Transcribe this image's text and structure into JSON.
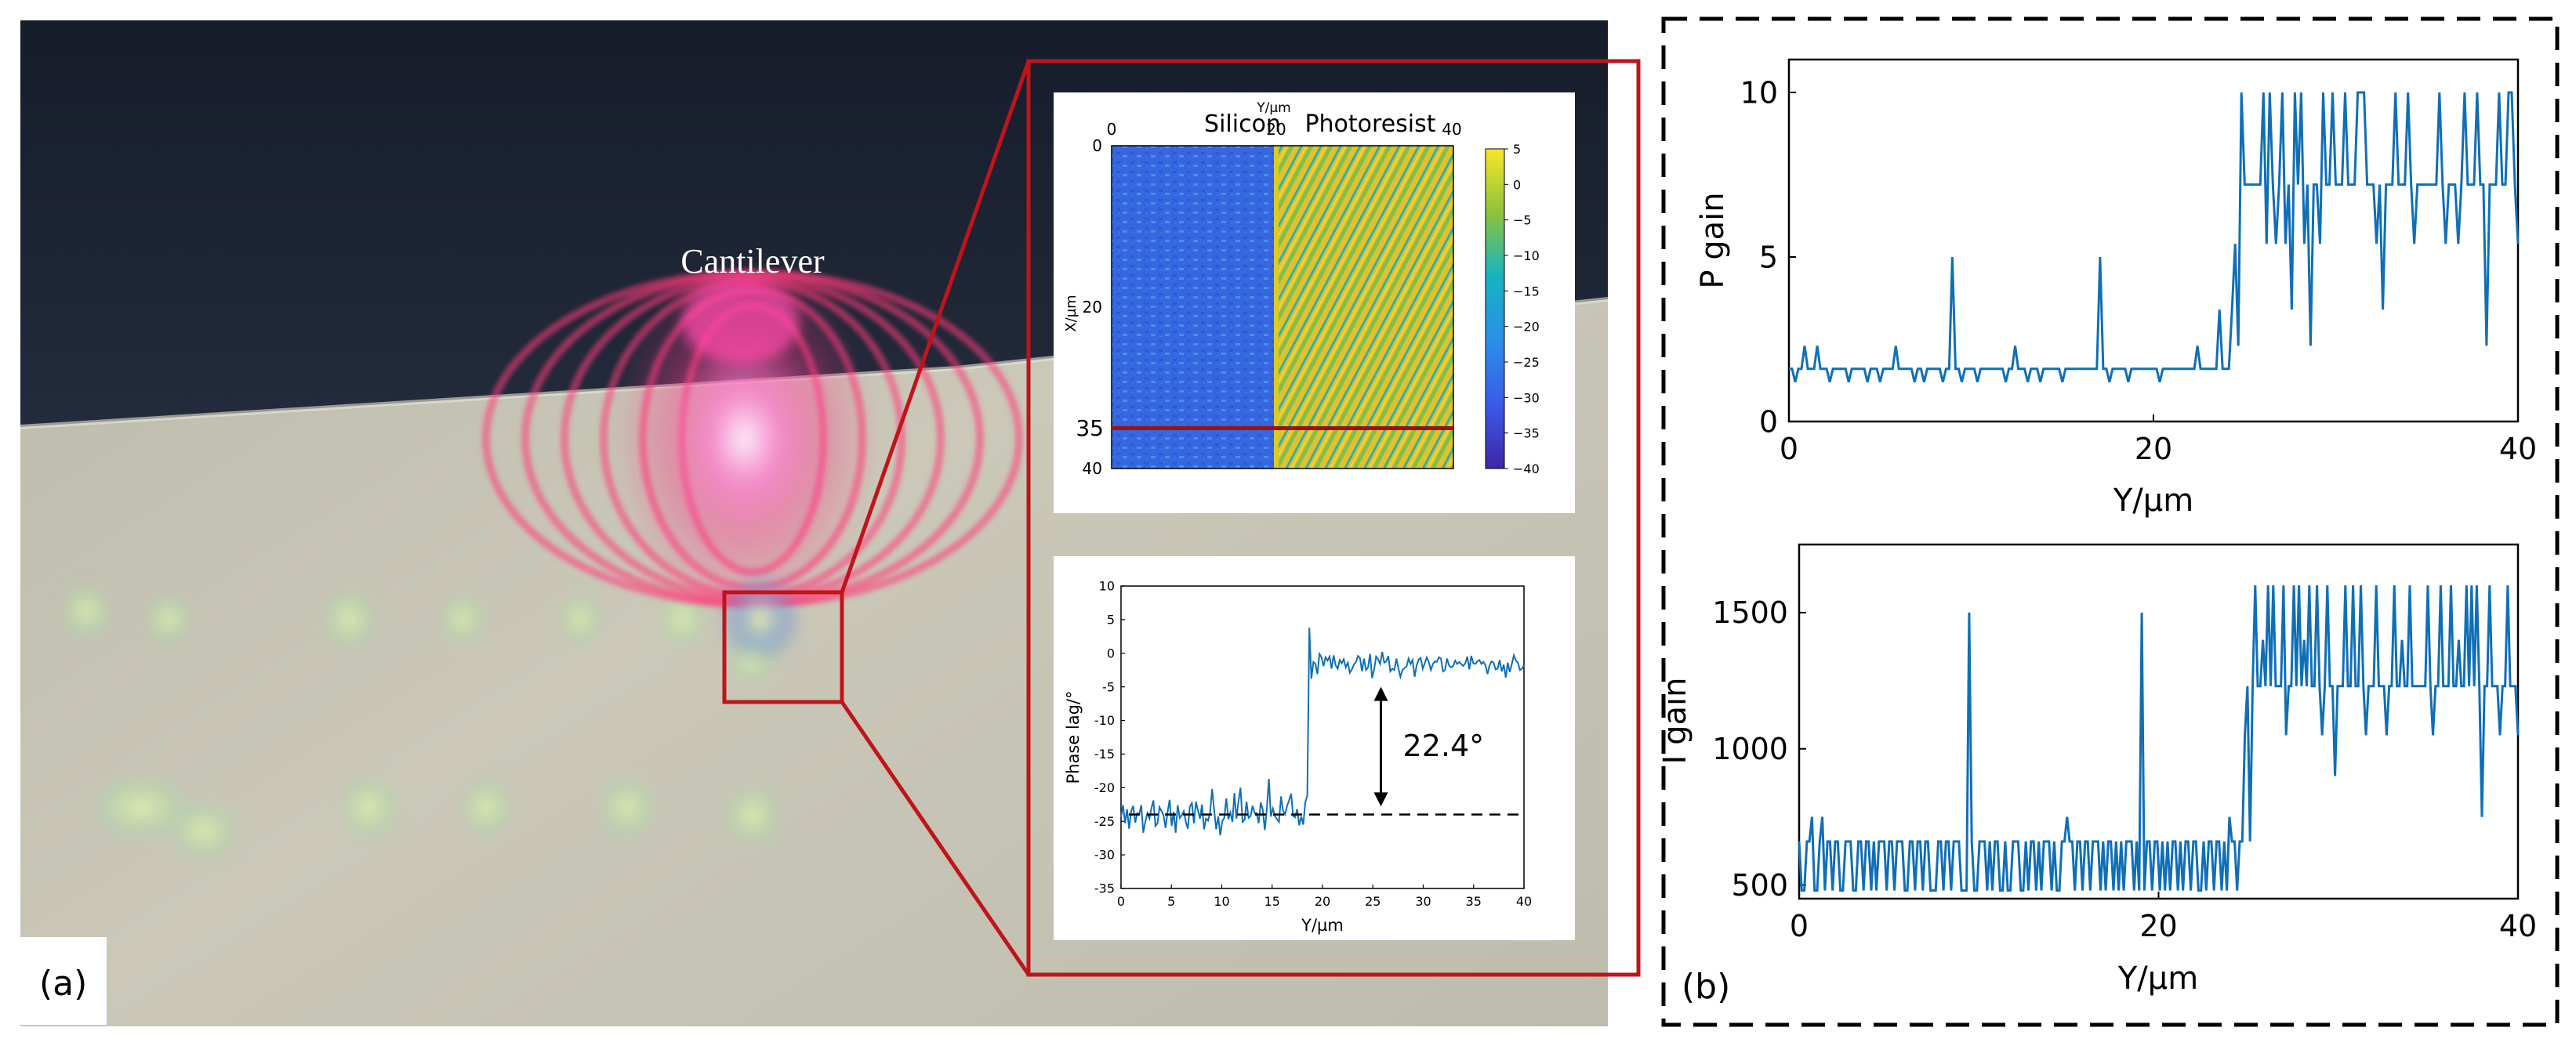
{
  "panel_a": {
    "label": "(a)",
    "cantilever_label": "Cantilever",
    "zoom_marker": "35",
    "colors": {
      "zoom_frame": "#c0141b",
      "sky": "#1b2231",
      "sample": "#c9c6b6",
      "laser": "#ff4a8a",
      "line": "#0f6fb6"
    },
    "chart_data": [
      {
        "type": "heatmap",
        "title": "",
        "top_axis_label": "Y/µm",
        "left_axis_label": "X/µm",
        "region_labels": [
          "Silicon",
          "Photoresist"
        ],
        "x_ticks": [
          "0",
          "20",
          "40"
        ],
        "y_ticks": [
          "0",
          "20",
          "35",
          "40"
        ],
        "boundary_y_um": 20,
        "cut_line_x_um": 35,
        "colorbar_ticks": [
          "5",
          "0",
          "−5",
          "−10",
          "−15",
          "−20",
          "−25",
          "−30",
          "−35",
          "−40"
        ],
        "colorbar_range": [
          -40,
          5
        ],
        "silicon_mean_value": -28,
        "photoresist_mean_value": 0
      },
      {
        "type": "line",
        "xlabel": "Y/µm",
        "ylabel": "Phase lag/°",
        "xlim": [
          0,
          40
        ],
        "ylim": [
          -35,
          10
        ],
        "x_ticks": [
          "0",
          "5",
          "10",
          "15",
          "20",
          "25",
          "30",
          "35",
          "40"
        ],
        "y_ticks": [
          "10",
          "5",
          "0",
          "-5",
          "-10",
          "-15",
          "-20",
          "-25",
          "-30",
          "-35"
        ],
        "silicon_level": -24,
        "photoresist_level": -1.6,
        "step_at_um": 18.5,
        "dashed_reference": -24,
        "annotation": "22.4°",
        "series": [
          {
            "name": "phase lag",
            "values": [
              -24.4,
              -22.6,
              -25.3,
              -23.2,
              -26.1,
              -23.5,
              -22.7,
              -25.2,
              -23.8,
              -24.0,
              -22.6,
              -26.7,
              -25.1,
              -23.8,
              -24.6,
              -23.1,
              -21.9,
              -25.7,
              -25.3,
              -22.9,
              -23.5,
              -24.1,
              -26.0,
              -23.6,
              -21.8,
              -25.7,
              -23.6,
              -26.7,
              -22.6,
              -24.5,
              -24.1,
              -23.5,
              -25.1,
              -26.1,
              -22.8,
              -22.3,
              -25.3,
              -22.1,
              -23.4,
              -24.6,
              -22.5,
              -26.2,
              -24.6,
              -24.9,
              -23.7,
              -20.2,
              -23.4,
              -26.2,
              -24.3,
              -27.1,
              -25.0,
              -24.5,
              -21.6,
              -24.7,
              -23.7,
              -25.1,
              -20.8,
              -24.6,
              -22.1,
              -20.0,
              -25.1,
              -24.8,
              -22.1,
              -24.5,
              -24.2,
              -22.7,
              -23.8,
              -23.8,
              -25.3,
              -22.2,
              -23.3,
              -26.3,
              -23.2,
              -18.7,
              -24.3,
              -23.1,
              -24.2,
              -24.7,
              -25.1,
              -21.3,
              -23.4,
              -24.0,
              -22.7,
              -21.9,
              -20.9,
              -24.2,
              -24.4,
              -23.2,
              -25.6,
              -24.3,
              -25.5,
              -22.2,
              -21.2,
              3.8,
              -3.8,
              -1.3,
              -1.6,
              -3.1,
              -0.1,
              -0.6,
              -1.9,
              -0.6,
              -1.1,
              -0.5,
              -2.3,
              -0.3,
              -1.8,
              -2.3,
              -1.0,
              -1.5,
              -0.9,
              -2.1,
              -1.4,
              -2.9,
              -2.4,
              -1.7,
              -1.3,
              -0.4,
              -0.7,
              -2.7,
              -0.8,
              -2.5,
              -2.1,
              -0.1,
              -3.7,
              -2.4,
              -0.5,
              -0.9,
              -1.6,
              0.2,
              -1.4,
              -1.2,
              -0.4,
              -2.7,
              -2.3,
              -2.5,
              -0.8,
              -2.3,
              -3.5,
              -2.5,
              -2.2,
              -2.0,
              -0.8,
              -1.6,
              -1.0,
              -3.5,
              -1.8,
              -0.9,
              -0.7,
              -2.3,
              -1.5,
              -0.6,
              -1.3,
              -2.5,
              -1.6,
              -1.2,
              -1.3,
              -0.6,
              -0.8,
              -2.7,
              -2.5,
              -0.8,
              -1.8,
              -2.1,
              -1.9,
              -1.1,
              -1.6,
              -1.3,
              -1.6,
              -1.9,
              -1.5,
              -0.5,
              -2.4,
              -0.4,
              -1.5,
              -1.6,
              -1.2,
              -1.0,
              -1.6,
              -1.3,
              -1.8,
              -3.1,
              -1.8,
              -1.2,
              -1.4,
              -2.4,
              -2.3,
              -1.0,
              -2.7,
              -1.7,
              -3.6,
              -1.4,
              -2.8,
              -1.6,
              -0.3,
              -1.1,
              -1.4,
              -2.5,
              -2.3,
              -1.8
            ]
          }
        ]
      }
    ]
  },
  "panel_b": {
    "label": "(b)",
    "chart_data": [
      {
        "type": "line",
        "xlabel": "Y/µm",
        "ylabel": "P gain",
        "xlim": [
          0,
          40
        ],
        "ylim": [
          0,
          11
        ],
        "x_ticks": [
          "0",
          "20",
          "40"
        ],
        "y_ticks": [
          "0",
          "5",
          "10"
        ],
        "series": [
          {
            "name": "P gain",
            "values": [
              1.6,
              1.6,
              1.2,
              1.6,
              1.6,
              2.3,
              1.6,
              1.6,
              1.6,
              2.3,
              1.6,
              1.6,
              1.6,
              1.2,
              1.6,
              1.6,
              1.6,
              1.6,
              1.6,
              1.2,
              1.6,
              1.6,
              1.6,
              1.6,
              1.6,
              1.2,
              1.6,
              1.6,
              1.6,
              1.2,
              1.6,
              1.6,
              1.6,
              1.6,
              2.3,
              1.6,
              1.6,
              1.6,
              1.6,
              1.6,
              1.2,
              1.6,
              1.6,
              1.2,
              1.6,
              1.6,
              1.6,
              1.6,
              1.6,
              1.2,
              1.6,
              1.6,
              5.0,
              1.6,
              1.6,
              1.2,
              1.6,
              1.6,
              1.6,
              1.6,
              1.2,
              1.6,
              1.6,
              1.6,
              1.6,
              1.6,
              1.6,
              1.6,
              1.6,
              1.2,
              1.6,
              1.6,
              2.3,
              1.6,
              1.6,
              1.6,
              1.2,
              1.6,
              1.6,
              1.6,
              1.2,
              1.6,
              1.6,
              1.6,
              1.6,
              1.6,
              1.6,
              1.2,
              1.6,
              1.6,
              1.6,
              1.6,
              1.6,
              1.6,
              1.6,
              1.6,
              1.6,
              1.6,
              1.6,
              5.0,
              1.6,
              1.6,
              1.2,
              1.6,
              1.6,
              1.6,
              1.6,
              1.6,
              1.2,
              1.6,
              1.6,
              1.6,
              1.6,
              1.6,
              1.6,
              1.6,
              1.6,
              1.6,
              1.2,
              1.6,
              1.6,
              1.6,
              1.6,
              1.6,
              1.6,
              1.6,
              1.6,
              1.6,
              1.6,
              1.6,
              2.3,
              1.6,
              1.6,
              1.6,
              1.6,
              1.6,
              1.6,
              3.4,
              1.6,
              1.6,
              1.6,
              3.4,
              5.4,
              2.3,
              10.0,
              7.2,
              7.2,
              7.2,
              7.2,
              7.2,
              7.2,
              10.0,
              5.4,
              10.0,
              7.2,
              5.4,
              7.2,
              10.0,
              5.4,
              7.2,
              3.4,
              10.0,
              7.2,
              10.0,
              5.4,
              7.2,
              2.3,
              7.2,
              7.2,
              5.4,
              10.0,
              7.2,
              7.2,
              10.0,
              7.2,
              7.2,
              7.2,
              10.0,
              7.2,
              7.2,
              7.2,
              10.0,
              10.0,
              10.0,
              7.2,
              7.2,
              7.2,
              5.4,
              7.2,
              3.4,
              7.2,
              7.2,
              7.2,
              10.0,
              7.2,
              7.2,
              7.2,
              10.0,
              7.2,
              5.4,
              7.2,
              7.2,
              7.2,
              7.2,
              7.2,
              7.2,
              7.2,
              10.0,
              7.2,
              5.4,
              7.2,
              7.2,
              7.2,
              5.4,
              7.2,
              10.0,
              7.2,
              7.2,
              7.2,
              10.0,
              7.2,
              7.2,
              2.3,
              7.2,
              7.2,
              7.2,
              10.0,
              7.2,
              7.2,
              10.0,
              10.0,
              7.2,
              5.4
            ]
          }
        ]
      },
      {
        "type": "line",
        "xlabel": "Y/µm",
        "ylabel": "I gain",
        "xlim": [
          0,
          40
        ],
        "ylim": [
          450,
          1750
        ],
        "x_ticks": [
          "0",
          "20",
          "40"
        ],
        "y_ticks": [
          "500",
          "1000",
          "1500"
        ],
        "series": [
          {
            "name": "I gain",
            "values": [
              660,
              480,
              480,
              660,
              660,
              750,
              480,
              480,
              660,
              750,
              480,
              660,
              660,
              480,
              660,
              660,
              480,
              480,
              660,
              660,
              660,
              480,
              480,
              660,
              660,
              480,
              660,
              660,
              480,
              660,
              480,
              660,
              660,
              660,
              480,
              660,
              660,
              480,
              660,
              660,
              660,
              480,
              480,
              660,
              660,
              480,
              660,
              660,
              480,
              660,
              660,
              480,
              480,
              480,
              660,
              660,
              480,
              660,
              660,
              480,
              660,
              660,
              660,
              480,
              480,
              480,
              1500,
              660,
              480,
              480,
              660,
              660,
              660,
              480,
              660,
              480,
              660,
              660,
              480,
              480,
              660,
              480,
              480,
              660,
              660,
              660,
              480,
              480,
              660,
              480,
              660,
              660,
              480,
              660,
              480,
              660,
              660,
              660,
              480,
              660,
              480,
              480,
              660,
              660,
              750,
              660,
              660,
              480,
              660,
              660,
              480,
              660,
              660,
              480,
              660,
              660,
              660,
              480,
              660,
              480,
              660,
              660,
              480,
              660,
              480,
              660,
              480,
              660,
              660,
              660,
              480,
              660,
              480,
              1500,
              480,
              660,
              660,
              480,
              660,
              660,
              480,
              660,
              480,
              660,
              480,
              660,
              660,
              480,
              660,
              480,
              660,
              660,
              480,
              660,
              660,
              480,
              480,
              660,
              480,
              660,
              660,
              480,
              660,
              660,
              480,
              660,
              480,
              750,
              660,
              660,
              480,
              660,
              660,
              1050,
              1230,
              660,
              1230,
              1600,
              1230,
              1230,
              1400,
              1230,
              1600,
              1230,
              1600,
              1230,
              1230,
              1230,
              1600,
              1050,
              1230,
              1230,
              1600,
              1230,
              1600,
              1230,
              1400,
              1230,
              1600,
              1230,
              1230,
              1600,
              1230,
              1050,
              1230,
              1600,
              1230,
              1230,
              900,
              1230,
              1230,
              1230,
              1600,
              1230,
              1230,
              1600,
              1230,
              1230,
              1600,
              1230,
              1050,
              1230,
              1230,
              1230,
              1600,
              1230,
              1230,
              1230,
              1050,
              1230,
              1230,
              1600,
              1230,
              1230,
              1400,
              1230,
              1230,
              1600,
              1230,
              1230,
              1230,
              1230,
              1230,
              1230,
              1600,
              1230,
              1050,
              1230,
              1230,
              1600,
              1230,
              1230,
              1230,
              1600,
              1230,
              1230,
              1400,
              1230,
              1230,
              1600,
              1230,
              1600,
              1230,
              1600,
              1230,
              750,
              1230,
              1230,
              1600,
              1230,
              1230,
              1230,
              1050,
              1230,
              1230,
              1600,
              1230,
              1230,
              1230,
              1050
            ]
          }
        ]
      }
    ]
  }
}
